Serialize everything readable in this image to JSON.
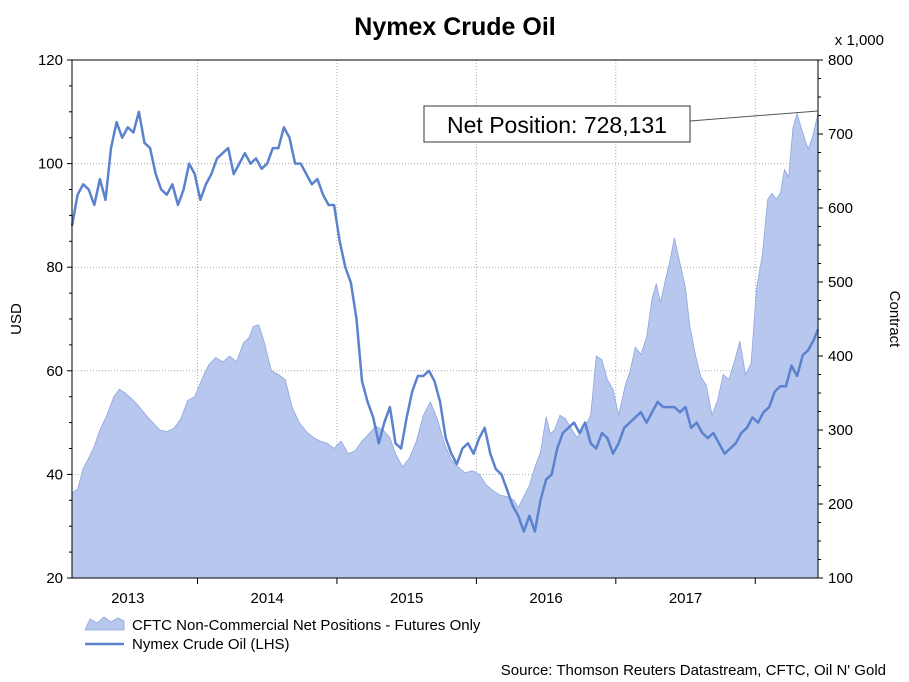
{
  "chart_data": {
    "type": "area+line",
    "title": "Nymex Crude Oil",
    "left_axis": {
      "label": "USD",
      "range": [
        20,
        120
      ],
      "ticks": [
        20,
        40,
        60,
        80,
        100,
        120
      ]
    },
    "right_axis": {
      "label": "Contract",
      "unit_note": "x 1,000",
      "range": [
        100,
        800
      ],
      "ticks": [
        100,
        200,
        300,
        400,
        500,
        600,
        700,
        800
      ]
    },
    "x_axis": {
      "range": [
        2012.6,
        2017.95
      ],
      "ticks": [
        "2013",
        "2014",
        "2015",
        "2016",
        "2017"
      ],
      "tick_positions": [
        2013,
        2014,
        2015,
        2016,
        2017
      ]
    },
    "grid": true,
    "legend_placement": "bottom-left",
    "series": [
      {
        "name": "CFTC Non-Commercial Net Positions - Futures Only",
        "type": "area",
        "axis": "right",
        "color": "#b7c7ee",
        "edge_color": "#8fa6dd",
        "points": [
          [
            2012.6,
            215
          ],
          [
            2012.64,
            220
          ],
          [
            2012.68,
            248
          ],
          [
            2012.72,
            262
          ],
          [
            2012.76,
            278
          ],
          [
            2012.8,
            300
          ],
          [
            2012.85,
            320
          ],
          [
            2012.9,
            345
          ],
          [
            2012.94,
            355
          ],
          [
            2012.98,
            350
          ],
          [
            2013.03,
            342
          ],
          [
            2013.08,
            332
          ],
          [
            2013.13,
            320
          ],
          [
            2013.18,
            310
          ],
          [
            2013.23,
            300
          ],
          [
            2013.28,
            298
          ],
          [
            2013.33,
            302
          ],
          [
            2013.38,
            315
          ],
          [
            2013.43,
            340
          ],
          [
            2013.48,
            345
          ],
          [
            2013.53,
            368
          ],
          [
            2013.58,
            388
          ],
          [
            2013.63,
            398
          ],
          [
            2013.68,
            392
          ],
          [
            2013.73,
            400
          ],
          [
            2013.78,
            392
          ],
          [
            2013.83,
            418
          ],
          [
            2013.87,
            425
          ],
          [
            2013.9,
            440
          ],
          [
            2013.94,
            442
          ],
          [
            2013.98,
            418
          ],
          [
            2014.03,
            380
          ],
          [
            2014.08,
            375
          ],
          [
            2014.13,
            368
          ],
          [
            2014.18,
            330
          ],
          [
            2014.23,
            310
          ],
          [
            2014.28,
            298
          ],
          [
            2014.33,
            290
          ],
          [
            2014.38,
            285
          ],
          [
            2014.43,
            282
          ],
          [
            2014.48,
            275
          ],
          [
            2014.53,
            285
          ],
          [
            2014.58,
            268
          ],
          [
            2014.63,
            272
          ],
          [
            2014.68,
            285
          ],
          [
            2014.73,
            295
          ],
          [
            2014.78,
            305
          ],
          [
            2014.83,
            300
          ],
          [
            2014.88,
            290
          ],
          [
            2014.92,
            268
          ],
          [
            2014.97,
            250
          ],
          [
            2015.02,
            262
          ],
          [
            2015.07,
            285
          ],
          [
            2015.12,
            320
          ],
          [
            2015.17,
            338
          ],
          [
            2015.22,
            315
          ],
          [
            2015.27,
            282
          ],
          [
            2015.32,
            260
          ],
          [
            2015.37,
            250
          ],
          [
            2015.42,
            242
          ],
          [
            2015.47,
            245
          ],
          [
            2015.52,
            240
          ],
          [
            2015.57,
            226
          ],
          [
            2015.62,
            218
          ],
          [
            2015.67,
            212
          ],
          [
            2015.72,
            210
          ],
          [
            2015.77,
            205
          ],
          [
            2015.8,
            195
          ],
          [
            2015.84,
            210
          ],
          [
            2015.88,
            225
          ],
          [
            2015.92,
            250
          ],
          [
            2015.96,
            270
          ],
          [
            2016.0,
            318
          ],
          [
            2016.03,
            295
          ],
          [
            2016.06,
            300
          ],
          [
            2016.1,
            320
          ],
          [
            2016.14,
            315
          ],
          [
            2016.18,
            302
          ],
          [
            2016.22,
            290
          ],
          [
            2016.27,
            300
          ],
          [
            2016.32,
            320
          ],
          [
            2016.36,
            400
          ],
          [
            2016.4,
            395
          ],
          [
            2016.44,
            368
          ],
          [
            2016.48,
            355
          ],
          [
            2016.52,
            320
          ],
          [
            2016.57,
            362
          ],
          [
            2016.6,
            378
          ],
          [
            2016.64,
            412
          ],
          [
            2016.68,
            402
          ],
          [
            2016.72,
            425
          ],
          [
            2016.76,
            478
          ],
          [
            2016.79,
            498
          ],
          [
            2016.82,
            472
          ],
          [
            2016.85,
            498
          ],
          [
            2016.89,
            530
          ],
          [
            2016.92,
            560
          ],
          [
            2016.96,
            525
          ],
          [
            2017.0,
            492
          ],
          [
            2017.03,
            442
          ],
          [
            2017.07,
            402
          ],
          [
            2017.11,
            372
          ],
          [
            2017.15,
            360
          ],
          [
            2017.19,
            320
          ],
          [
            2017.23,
            340
          ],
          [
            2017.27,
            375
          ],
          [
            2017.31,
            368
          ],
          [
            2017.35,
            392
          ],
          [
            2017.39,
            420
          ],
          [
            2017.43,
            375
          ],
          [
            2017.47,
            390
          ],
          [
            2017.51,
            492
          ],
          [
            2017.55,
            535
          ],
          [
            2017.59,
            612
          ],
          [
            2017.62,
            620
          ],
          [
            2017.65,
            612
          ],
          [
            2017.68,
            620
          ],
          [
            2017.71,
            652
          ],
          [
            2017.74,
            642
          ],
          [
            2017.77,
            708
          ],
          [
            2017.8,
            728
          ],
          [
            2017.83,
            708
          ],
          [
            2017.86,
            690
          ],
          [
            2017.88,
            680
          ],
          [
            2017.91,
            695
          ],
          [
            2017.95,
            728
          ]
        ]
      },
      {
        "name": "Nymex Crude Oil (LHS)",
        "type": "line",
        "axis": "left",
        "color": "#5b82cf",
        "points": [
          [
            2012.6,
            88
          ],
          [
            2012.64,
            94
          ],
          [
            2012.68,
            96
          ],
          [
            2012.72,
            95
          ],
          [
            2012.76,
            92
          ],
          [
            2012.8,
            97
          ],
          [
            2012.84,
            93
          ],
          [
            2012.88,
            103
          ],
          [
            2012.92,
            108
          ],
          [
            2012.96,
            105
          ],
          [
            2013.0,
            107
          ],
          [
            2013.04,
            106
          ],
          [
            2013.08,
            110
          ],
          [
            2013.12,
            104
          ],
          [
            2013.16,
            103
          ],
          [
            2013.2,
            98
          ],
          [
            2013.24,
            95
          ],
          [
            2013.28,
            94
          ],
          [
            2013.32,
            96
          ],
          [
            2013.36,
            92
          ],
          [
            2013.4,
            95
          ],
          [
            2013.44,
            100
          ],
          [
            2013.48,
            98
          ],
          [
            2013.52,
            93
          ],
          [
            2013.56,
            96
          ],
          [
            2013.6,
            98
          ],
          [
            2013.64,
            101
          ],
          [
            2013.68,
            102
          ],
          [
            2013.72,
            103
          ],
          [
            2013.76,
            98
          ],
          [
            2013.8,
            100
          ],
          [
            2013.84,
            102
          ],
          [
            2013.88,
            100
          ],
          [
            2013.92,
            101
          ],
          [
            2013.96,
            99
          ],
          [
            2014.0,
            100
          ],
          [
            2014.04,
            103
          ],
          [
            2014.08,
            103
          ],
          [
            2014.12,
            107
          ],
          [
            2014.16,
            105
          ],
          [
            2014.2,
            100
          ],
          [
            2014.24,
            100
          ],
          [
            2014.28,
            98
          ],
          [
            2014.32,
            96
          ],
          [
            2014.36,
            97
          ],
          [
            2014.4,
            94
          ],
          [
            2014.44,
            92
          ],
          [
            2014.48,
            92
          ],
          [
            2014.52,
            85
          ],
          [
            2014.56,
            80
          ],
          [
            2014.6,
            77
          ],
          [
            2014.64,
            70
          ],
          [
            2014.68,
            58
          ],
          [
            2014.72,
            54
          ],
          [
            2014.76,
            51
          ],
          [
            2014.8,
            46
          ],
          [
            2014.84,
            50
          ],
          [
            2014.88,
            53
          ],
          [
            2014.92,
            46
          ],
          [
            2014.96,
            45
          ],
          [
            2015.0,
            51
          ],
          [
            2015.04,
            56
          ],
          [
            2015.08,
            59
          ],
          [
            2015.12,
            59
          ],
          [
            2015.16,
            60
          ],
          [
            2015.2,
            58
          ],
          [
            2015.24,
            54
          ],
          [
            2015.28,
            47
          ],
          [
            2015.32,
            44
          ],
          [
            2015.36,
            42
          ],
          [
            2015.4,
            45
          ],
          [
            2015.44,
            46
          ],
          [
            2015.48,
            44
          ],
          [
            2015.52,
            47
          ],
          [
            2015.56,
            49
          ],
          [
            2015.6,
            44
          ],
          [
            2015.64,
            41
          ],
          [
            2015.68,
            40
          ],
          [
            2015.72,
            37
          ],
          [
            2015.76,
            34
          ],
          [
            2015.8,
            32
          ],
          [
            2015.84,
            29
          ],
          [
            2015.88,
            32
          ],
          [
            2015.92,
            29
          ],
          [
            2015.96,
            35
          ],
          [
            2016.0,
            39
          ],
          [
            2016.04,
            40
          ],
          [
            2016.08,
            45
          ],
          [
            2016.12,
            48
          ],
          [
            2016.16,
            49
          ],
          [
            2016.2,
            50
          ],
          [
            2016.24,
            48
          ],
          [
            2016.28,
            50
          ],
          [
            2016.32,
            46
          ],
          [
            2016.36,
            45
          ],
          [
            2016.4,
            48
          ],
          [
            2016.44,
            47
          ],
          [
            2016.48,
            44
          ],
          [
            2016.52,
            46
          ],
          [
            2016.56,
            49
          ],
          [
            2016.6,
            50
          ],
          [
            2016.64,
            51
          ],
          [
            2016.68,
            52
          ],
          [
            2016.72,
            50
          ],
          [
            2016.76,
            52
          ],
          [
            2016.8,
            54
          ],
          [
            2016.84,
            53
          ],
          [
            2016.88,
            53
          ],
          [
            2016.92,
            53
          ],
          [
            2016.96,
            52
          ],
          [
            2017.0,
            53
          ],
          [
            2017.04,
            49
          ],
          [
            2017.08,
            50
          ],
          [
            2017.12,
            48
          ],
          [
            2017.16,
            47
          ],
          [
            2017.2,
            48
          ],
          [
            2017.24,
            46
          ],
          [
            2017.28,
            44
          ],
          [
            2017.32,
            45
          ],
          [
            2017.36,
            46
          ],
          [
            2017.4,
            48
          ],
          [
            2017.44,
            49
          ],
          [
            2017.48,
            51
          ],
          [
            2017.52,
            50
          ],
          [
            2017.56,
            52
          ],
          [
            2017.6,
            53
          ],
          [
            2017.64,
            56
          ],
          [
            2017.68,
            57
          ],
          [
            2017.72,
            57
          ],
          [
            2017.76,
            61
          ],
          [
            2017.8,
            59
          ],
          [
            2017.84,
            63
          ],
          [
            2017.88,
            64
          ],
          [
            2017.92,
            66
          ],
          [
            2017.95,
            68
          ]
        ]
      }
    ],
    "annotations": [
      {
        "text": "Net Position: 728,131",
        "points_to": [
          2017.95,
          728
        ]
      }
    ],
    "source": "Source: Thomson Reuters Datastream, CFTC, Oil N' Gold"
  }
}
